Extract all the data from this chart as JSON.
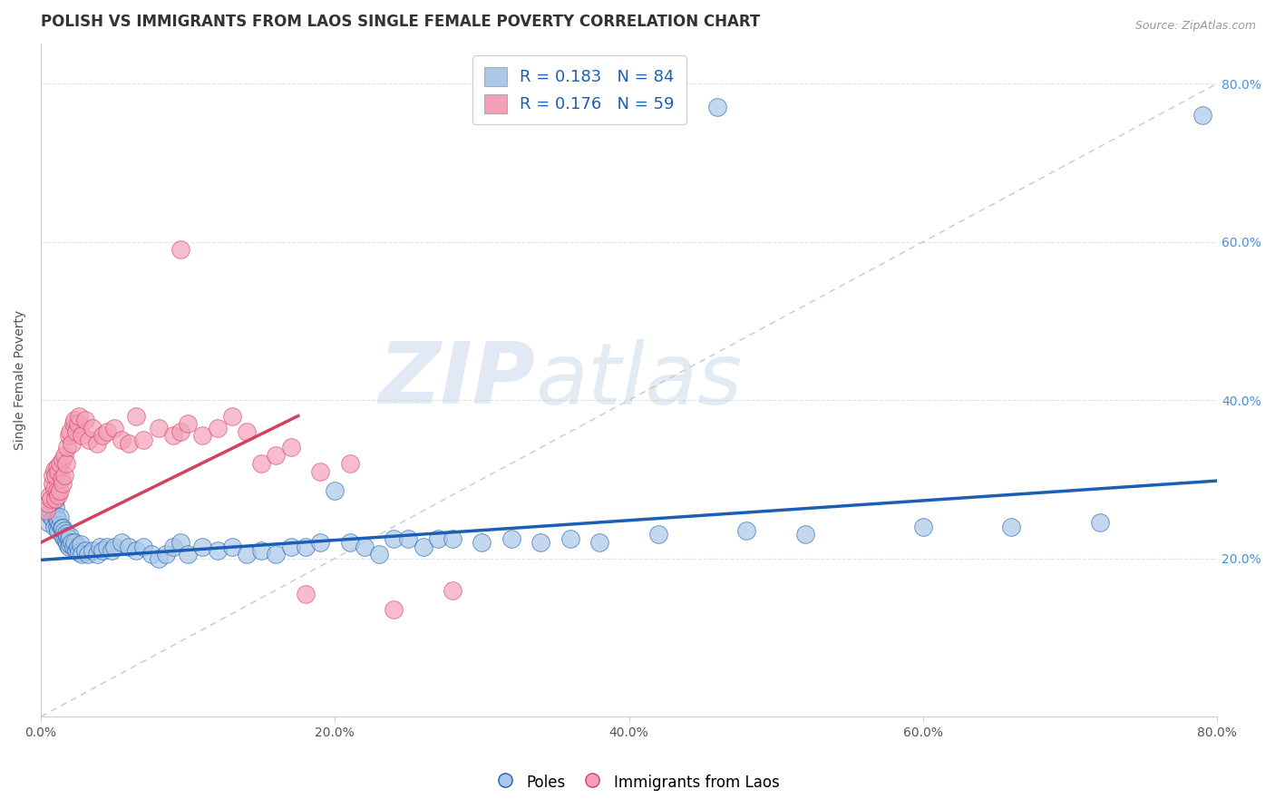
{
  "title": "POLISH VS IMMIGRANTS FROM LAOS SINGLE FEMALE POVERTY CORRELATION CHART",
  "source": "Source: ZipAtlas.com",
  "ylabel": "Single Female Poverty",
  "xlim": [
    0,
    0.8
  ],
  "ylim": [
    0,
    0.85
  ],
  "xticks": [
    0.0,
    0.2,
    0.4,
    0.6,
    0.8
  ],
  "xtick_labels": [
    "0.0%",
    "20.0%",
    "40.0%",
    "60.0%",
    "80.0%"
  ],
  "yticks": [
    0.2,
    0.4,
    0.6,
    0.8
  ],
  "ytick_labels": [
    "20.0%",
    "40.0%",
    "60.0%",
    "80.0%"
  ],
  "poles_color": "#aac8e8",
  "laos_color": "#f4a0b8",
  "poles_line_color": "#1a5fb4",
  "laos_line_color": "#d44060",
  "ref_line_color": "#c8c8d8",
  "legend_R_poles": "R = 0.183",
  "legend_N_poles": "N = 84",
  "legend_R_laos": "R = 0.176",
  "legend_N_laos": "N = 59",
  "watermark_zip": "ZIP",
  "watermark_atlas": "atlas",
  "background_color": "#ffffff",
  "grid_color": "#dde4f0",
  "title_fontsize": 12,
  "axis_label_fontsize": 10,
  "tick_fontsize": 10,
  "poles_trend_x0": 0.0,
  "poles_trend_y0": 0.198,
  "poles_trend_x1": 0.8,
  "poles_trend_y1": 0.298,
  "laos_trend_x0": 0.0,
  "laos_trend_y0": 0.22,
  "laos_trend_x1": 0.175,
  "laos_trend_y1": 0.38,
  "poles_x": [
    0.005,
    0.006,
    0.007,
    0.008,
    0.009,
    0.01,
    0.01,
    0.01,
    0.011,
    0.011,
    0.012,
    0.012,
    0.013,
    0.013,
    0.014,
    0.015,
    0.015,
    0.016,
    0.016,
    0.017,
    0.017,
    0.018,
    0.018,
    0.019,
    0.019,
    0.02,
    0.02,
    0.021,
    0.022,
    0.023,
    0.024,
    0.025,
    0.026,
    0.027,
    0.028,
    0.03,
    0.032,
    0.035,
    0.038,
    0.04,
    0.042,
    0.045,
    0.048,
    0.05,
    0.055,
    0.06,
    0.065,
    0.07,
    0.075,
    0.08,
    0.085,
    0.09,
    0.095,
    0.1,
    0.11,
    0.12,
    0.13,
    0.14,
    0.15,
    0.16,
    0.17,
    0.18,
    0.19,
    0.2,
    0.21,
    0.22,
    0.23,
    0.24,
    0.25,
    0.26,
    0.27,
    0.28,
    0.3,
    0.32,
    0.34,
    0.36,
    0.38,
    0.42,
    0.48,
    0.52,
    0.6,
    0.66,
    0.72,
    0.79
  ],
  "poles_y": [
    0.245,
    0.255,
    0.26,
    0.25,
    0.24,
    0.255,
    0.265,
    0.275,
    0.24,
    0.25,
    0.235,
    0.248,
    0.242,
    0.252,
    0.238,
    0.228,
    0.238,
    0.225,
    0.235,
    0.222,
    0.232,
    0.218,
    0.228,
    0.215,
    0.225,
    0.218,
    0.228,
    0.22,
    0.215,
    0.22,
    0.21,
    0.215,
    0.208,
    0.218,
    0.205,
    0.21,
    0.205,
    0.21,
    0.205,
    0.215,
    0.21,
    0.215,
    0.21,
    0.215,
    0.22,
    0.215,
    0.21,
    0.215,
    0.205,
    0.2,
    0.205,
    0.215,
    0.22,
    0.205,
    0.215,
    0.21,
    0.215,
    0.205,
    0.21,
    0.205,
    0.215,
    0.215,
    0.22,
    0.285,
    0.22,
    0.215,
    0.205,
    0.225,
    0.225,
    0.215,
    0.225,
    0.225,
    0.22,
    0.225,
    0.22,
    0.225,
    0.22,
    0.23,
    0.235,
    0.23,
    0.24,
    0.24,
    0.245,
    0.76
  ],
  "laos_x": [
    0.004,
    0.005,
    0.006,
    0.007,
    0.008,
    0.008,
    0.009,
    0.009,
    0.01,
    0.01,
    0.011,
    0.011,
    0.012,
    0.012,
    0.013,
    0.013,
    0.014,
    0.015,
    0.015,
    0.016,
    0.016,
    0.017,
    0.018,
    0.019,
    0.02,
    0.021,
    0.022,
    0.023,
    0.024,
    0.025,
    0.026,
    0.028,
    0.03,
    0.033,
    0.035,
    0.038,
    0.042,
    0.045,
    0.05,
    0.055,
    0.06,
    0.065,
    0.07,
    0.08,
    0.09,
    0.095,
    0.1,
    0.11,
    0.12,
    0.13,
    0.14,
    0.15,
    0.16,
    0.17,
    0.18,
    0.19,
    0.21,
    0.24,
    0.28
  ],
  "laos_y": [
    0.26,
    0.27,
    0.28,
    0.275,
    0.295,
    0.305,
    0.288,
    0.312,
    0.275,
    0.305,
    0.285,
    0.315,
    0.28,
    0.31,
    0.285,
    0.32,
    0.3,
    0.295,
    0.325,
    0.305,
    0.33,
    0.32,
    0.34,
    0.355,
    0.36,
    0.345,
    0.37,
    0.375,
    0.36,
    0.37,
    0.38,
    0.355,
    0.375,
    0.35,
    0.365,
    0.345,
    0.355,
    0.36,
    0.365,
    0.35,
    0.345,
    0.38,
    0.35,
    0.365,
    0.355,
    0.36,
    0.37,
    0.355,
    0.365,
    0.38,
    0.36,
    0.32,
    0.33,
    0.34,
    0.155,
    0.31,
    0.32,
    0.135,
    0.16
  ],
  "laos_outlier_high_x": [
    0.095
  ],
  "laos_outlier_high_y": [
    0.59
  ]
}
